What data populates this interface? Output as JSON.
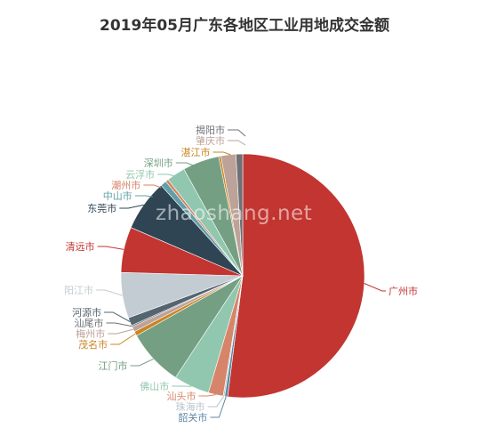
{
  "chart_data": {
    "type": "pie",
    "title": "2019年05月广东各地区工业用地成交金额",
    "watermark": "zhaoshang.net",
    "slices": [
      {
        "name": "广州市",
        "value": 52.5,
        "color": "#c23531"
      },
      {
        "name": "韶关市",
        "value": 0.4,
        "color": "#5f8aa3"
      },
      {
        "name": "珠海市",
        "value": 0.2,
        "color": "#b8c4c9"
      },
      {
        "name": "汕头市",
        "value": 2.0,
        "color": "#d6856a"
      },
      {
        "name": "佛山市",
        "value": 4.8,
        "color": "#91c7ae"
      },
      {
        "name": "江门市",
        "value": 7.6,
        "color": "#749f83"
      },
      {
        "name": "茂名市",
        "value": 0.6,
        "color": "#ca8622"
      },
      {
        "name": "梅州市",
        "value": 0.7,
        "color": "#bda29a"
      },
      {
        "name": "汕尾市",
        "value": 0.2,
        "color": "#6e7074"
      },
      {
        "name": "河源市",
        "value": 1.1,
        "color": "#546570"
      },
      {
        "name": "阳江市",
        "value": 6.1,
        "color": "#c4ccd3"
      },
      {
        "name": "清远市",
        "value": 6.1,
        "color": "#c23531"
      },
      {
        "name": "东莞市",
        "value": 6.9,
        "color": "#2f4554"
      },
      {
        "name": "中山市",
        "value": 0.8,
        "color": "#61a0a8"
      },
      {
        "name": "潮州市",
        "value": 0.4,
        "color": "#d48265"
      },
      {
        "name": "云浮市",
        "value": 2.5,
        "color": "#91c7ae"
      },
      {
        "name": "深圳市",
        "value": 4.9,
        "color": "#749f83"
      },
      {
        "name": "湛江市",
        "value": 0.3,
        "color": "#ca8622"
      },
      {
        "name": "肇庆市",
        "value": 2.0,
        "color": "#bda29a"
      },
      {
        "name": "揭阳市",
        "value": 0.9,
        "color": "#6e7074"
      }
    ]
  }
}
